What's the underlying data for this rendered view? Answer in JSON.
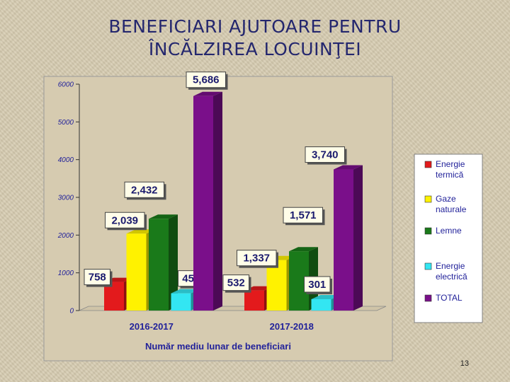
{
  "slide": {
    "title_line1": "BENEFICIARI  AJUTOARE PENTRU",
    "title_line2": "ÎNCĂLZIREA LOCUINŢEI",
    "page_number": "13"
  },
  "chart_data": {
    "type": "bar",
    "title": "",
    "xlabel": "Număr mediu lunar de beneficiari",
    "ylabel": "",
    "ylim": [
      0,
      6000
    ],
    "yticks": [
      "0",
      "1000",
      "2000",
      "3000",
      "4000",
      "5000",
      "6000"
    ],
    "grid": false,
    "legend_position": "right",
    "categories": [
      "2016-2017",
      "2017-2018"
    ],
    "series": [
      {
        "name": "Energie termică",
        "color": "#e31a1c",
        "values": [
          758,
          532
        ],
        "labels": [
          "758",
          "532"
        ]
      },
      {
        "name": "Gaze naturale",
        "color": "#fff200",
        "values": [
          2039,
          1337
        ],
        "labels": [
          "2,039",
          "1,337"
        ]
      },
      {
        "name": "Lemne",
        "color": "#1a7a1a",
        "values": [
          2432,
          1571
        ],
        "labels": [
          "2,432",
          "1,571"
        ]
      },
      {
        "name": "Energie electrică",
        "color": "#33e6f2",
        "values": [
          457,
          301
        ],
        "labels": [
          "457",
          "301"
        ]
      },
      {
        "name": "TOTAL",
        "color": "#7a0f8a",
        "values": [
          5686,
          3740
        ],
        "labels": [
          "5,686",
          "3,740"
        ]
      }
    ]
  }
}
